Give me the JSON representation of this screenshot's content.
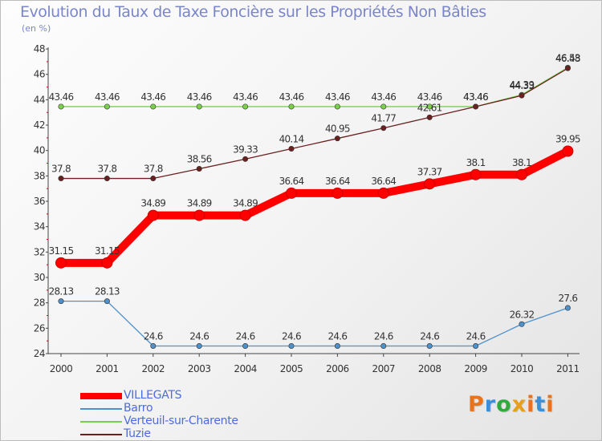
{
  "header": {
    "title": "Evolution du Taux de Taxe Foncière sur les Propriétés Non Bâties",
    "unit": "(en %)"
  },
  "brand": {
    "letters": [
      "P",
      "r",
      "o",
      "x",
      "i",
      "t",
      "i"
    ],
    "colors": [
      "#e8731a",
      "#3b8fd9",
      "#2faa3c",
      "#e8a01a",
      "#e8731a",
      "#3b8fd9",
      "#e8731a"
    ]
  },
  "chart_data": {
    "type": "line",
    "x": [
      "2000",
      "2001",
      "2002",
      "2003",
      "2004",
      "2005",
      "2006",
      "2007",
      "2008",
      "2009",
      "2010",
      "2011"
    ],
    "ylim": [
      24,
      48
    ],
    "yticks": [
      "24",
      "26",
      "28",
      "30",
      "32",
      "34",
      "36",
      "38",
      "40",
      "42",
      "44",
      "46",
      "48"
    ],
    "grid": false,
    "legend_position": "bottom-left",
    "series": [
      {
        "name": "VILLEGATS",
        "color": "#ff0000",
        "values": [
          31.15,
          31.15,
          34.89,
          34.89,
          34.89,
          36.64,
          36.64,
          36.64,
          37.37,
          38.1,
          38.1,
          39.95
        ],
        "labels": [
          "31.15",
          "31.15",
          "34.89",
          "34.89",
          "34.89",
          "36.64",
          "36.64",
          "36.64",
          "37.37",
          "38.1",
          "38.1",
          "39.95"
        ]
      },
      {
        "name": "Barro",
        "color": "#4f91cb",
        "values": [
          28.13,
          28.13,
          24.6,
          24.6,
          24.6,
          24.6,
          24.6,
          24.6,
          24.6,
          24.6,
          26.32,
          27.6
        ],
        "labels": [
          "28.13",
          "28.13",
          "24.6",
          "24.6",
          "24.6",
          "24.6",
          "24.6",
          "24.6",
          "24.6",
          "24.6",
          "26.32",
          "27.6"
        ]
      },
      {
        "name": "Verteuil-sur-Charente",
        "color": "#7bd04a",
        "values": [
          43.46,
          43.46,
          43.46,
          43.46,
          43.46,
          43.46,
          43.46,
          43.46,
          43.46,
          43.46,
          44.39,
          46.53
        ],
        "labels": [
          "43.46",
          "43.46",
          "43.46",
          "43.46",
          "43.46",
          "43.46",
          "43.46",
          "43.46",
          "43.46",
          "43.46",
          "44.39",
          "46.53"
        ]
      },
      {
        "name": "Tuzie",
        "color": "#6b2020",
        "values": [
          37.8,
          37.8,
          37.8,
          38.56,
          39.33,
          40.14,
          40.95,
          41.77,
          42.61,
          43.46,
          44.33,
          46.48
        ],
        "labels": [
          "37.8",
          "37.8",
          "37.8",
          "38.56",
          "39.33",
          "40.14",
          "40.95",
          "41.77",
          "42.61",
          "43.46",
          "44.33",
          "46.48"
        ]
      }
    ]
  }
}
